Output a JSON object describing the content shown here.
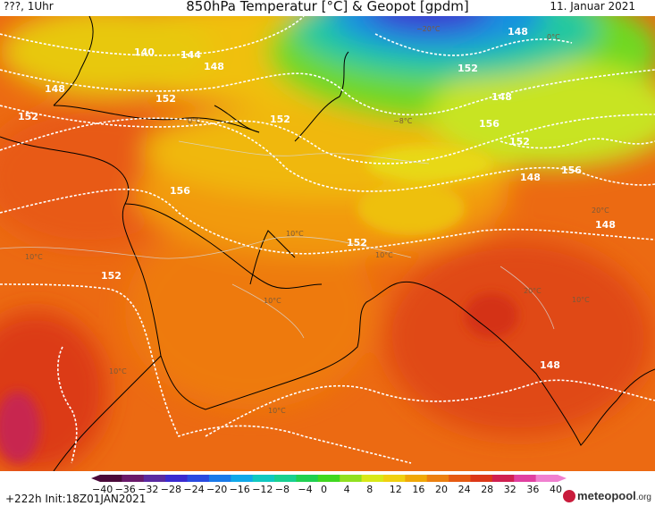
{
  "header": {
    "left": "???, 1Uhr",
    "title": "850hPa Temperatur [°C] & Geopot [gpdm]",
    "date": "11. Januar 2021"
  },
  "footer": {
    "run": "+222h Init:18Z01JAN2021",
    "logo_text": "meteopool",
    "logo_suffix": ".org"
  },
  "colorbar": {
    "ticks": [
      "−40",
      "−36",
      "−32",
      "−28",
      "−24",
      "−20",
      "−16",
      "−12",
      "−8",
      "−4",
      "0",
      "4",
      "8",
      "12",
      "16",
      "20",
      "24",
      "28",
      "32",
      "36",
      "40"
    ],
    "colors": [
      "#4a0a3a",
      "#6a1a6a",
      "#5a2aa0",
      "#3a2ad0",
      "#2a4ae0",
      "#1a7ae8",
      "#10a8e8",
      "#10c8c0",
      "#18d090",
      "#20d050",
      "#40d820",
      "#90e020",
      "#d8e818",
      "#f0d010",
      "#f0a808",
      "#ec8010",
      "#e65a12",
      "#dc3818",
      "#d02050",
      "#e040a0",
      "#f080d0"
    ]
  },
  "map": {
    "contours": [
      {
        "label": "140"
      },
      {
        "label": "144"
      },
      {
        "label": "148"
      },
      {
        "label": "148"
      },
      {
        "label": "152"
      },
      {
        "label": "152"
      },
      {
        "label": "152"
      },
      {
        "label": "156"
      },
      {
        "label": "152"
      },
      {
        "label": "152"
      },
      {
        "label": "148"
      },
      {
        "label": "152"
      },
      {
        "label": "148"
      },
      {
        "label": "148"
      },
      {
        "label": "148"
      },
      {
        "label": "148"
      },
      {
        "label": "156"
      },
      {
        "label": "156"
      },
      {
        "label": "152"
      }
    ],
    "temps": [
      "0°C",
      "10°C",
      "10°C",
      "10°C",
      "10°C",
      "10°C",
      "20°C",
      "20°C",
      "−8°C",
      "−20°C",
      "0°C",
      "10°C",
      "10°C"
    ]
  }
}
